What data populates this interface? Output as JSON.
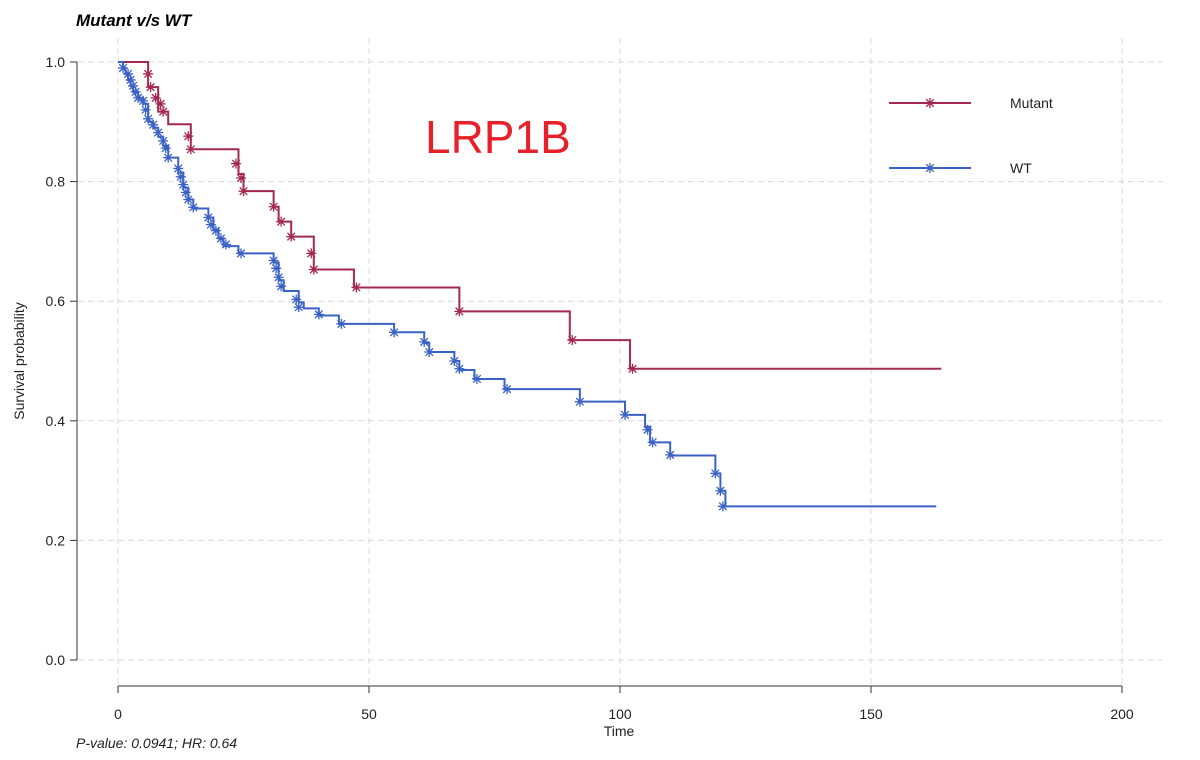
{
  "chart_data": {
    "type": "line",
    "title": "Mutant v/s WT",
    "xlabel": "Time",
    "ylabel": "Survival probability",
    "xlim": [
      0,
      200
    ],
    "ylim": [
      0,
      1
    ],
    "x_ticks": [
      0,
      50,
      100,
      150,
      200
    ],
    "y_ticks": [
      0.0,
      0.2,
      0.4,
      0.6,
      0.8,
      1.0
    ],
    "x_tick_labels": [
      "0",
      "50",
      "100",
      "150",
      "200"
    ],
    "y_tick_labels": [
      "0.0",
      "0.2",
      "0.4",
      "0.6",
      "0.8",
      "1.0"
    ],
    "grid": true,
    "legend_position": "top-right",
    "annotation": "LRP1B",
    "annotation_color": "#e8202a",
    "footnote": "P-value: 0.0941; HR: 0.64",
    "series": [
      {
        "name": "Mutant",
        "color": "#a3294f",
        "steps": [
          [
            0,
            1.0
          ],
          [
            6,
            0.958
          ],
          [
            8,
            0.917
          ],
          [
            10,
            0.896
          ],
          [
            14.5,
            0.854
          ],
          [
            24,
            0.813
          ],
          [
            25,
            0.784
          ],
          [
            31,
            0.758
          ],
          [
            32,
            0.733
          ],
          [
            34.5,
            0.708
          ],
          [
            39,
            0.653
          ],
          [
            47,
            0.623
          ],
          [
            68,
            0.583
          ],
          [
            90,
            0.535
          ],
          [
            102,
            0.487
          ],
          [
            164,
            0.487
          ]
        ],
        "censored": [
          [
            6,
            0.98
          ],
          [
            6.5,
            0.958
          ],
          [
            7.5,
            0.94
          ],
          [
            8.5,
            0.93
          ],
          [
            9,
            0.917
          ],
          [
            14,
            0.876
          ],
          [
            14.5,
            0.854
          ],
          [
            23.5,
            0.83
          ],
          [
            24.5,
            0.806
          ],
          [
            25,
            0.784
          ],
          [
            31,
            0.758
          ],
          [
            32.5,
            0.733
          ],
          [
            34.5,
            0.708
          ],
          [
            38.5,
            0.68
          ],
          [
            39,
            0.653
          ],
          [
            47.5,
            0.623
          ],
          [
            68,
            0.583
          ],
          [
            90.5,
            0.535
          ],
          [
            102.5,
            0.487
          ]
        ]
      },
      {
        "name": "WT",
        "color": "#3a62c4",
        "steps": [
          [
            0,
            1.0
          ],
          [
            1,
            0.99
          ],
          [
            1.5,
            0.98
          ],
          [
            2,
            0.97
          ],
          [
            2.5,
            0.96
          ],
          [
            3,
            0.95
          ],
          [
            4,
            0.94
          ],
          [
            5,
            0.93
          ],
          [
            6,
            0.9
          ],
          [
            7,
            0.89
          ],
          [
            8,
            0.875
          ],
          [
            9,
            0.86
          ],
          [
            10,
            0.84
          ],
          [
            12,
            0.815
          ],
          [
            13,
            0.79
          ],
          [
            14,
            0.77
          ],
          [
            15,
            0.755
          ],
          [
            18,
            0.74
          ],
          [
            19,
            0.72
          ],
          [
            20,
            0.705
          ],
          [
            21,
            0.692
          ],
          [
            24,
            0.68
          ],
          [
            31,
            0.665
          ],
          [
            32,
            0.635
          ],
          [
            33,
            0.617
          ],
          [
            36,
            0.598
          ],
          [
            37,
            0.588
          ],
          [
            40,
            0.576
          ],
          [
            44,
            0.562
          ],
          [
            55,
            0.548
          ],
          [
            61,
            0.53
          ],
          [
            62,
            0.515
          ],
          [
            67,
            0.5
          ],
          [
            68,
            0.485
          ],
          [
            71,
            0.47
          ],
          [
            77,
            0.453
          ],
          [
            92,
            0.432
          ],
          [
            101,
            0.41
          ],
          [
            105,
            0.39
          ],
          [
            106,
            0.364
          ],
          [
            110,
            0.342
          ],
          [
            119,
            0.312
          ],
          [
            120,
            0.283
          ],
          [
            121,
            0.257
          ],
          [
            163,
            0.257
          ]
        ],
        "censored": [
          [
            1,
            0.99
          ],
          [
            2,
            0.98
          ],
          [
            2.5,
            0.97
          ],
          [
            3,
            0.96
          ],
          [
            3.5,
            0.95
          ],
          [
            4,
            0.94
          ],
          [
            5,
            0.935
          ],
          [
            5.5,
            0.92
          ],
          [
            6,
            0.905
          ],
          [
            7,
            0.895
          ],
          [
            8,
            0.882
          ],
          [
            9,
            0.868
          ],
          [
            9.5,
            0.856
          ],
          [
            10,
            0.84
          ],
          [
            12,
            0.822
          ],
          [
            12.5,
            0.808
          ],
          [
            13,
            0.795
          ],
          [
            13.5,
            0.782
          ],
          [
            14,
            0.77
          ],
          [
            15,
            0.757
          ],
          [
            18,
            0.74
          ],
          [
            18.5,
            0.728
          ],
          [
            19.5,
            0.718
          ],
          [
            20.5,
            0.705
          ],
          [
            21.5,
            0.695
          ],
          [
            24.5,
            0.68
          ],
          [
            31,
            0.668
          ],
          [
            31.5,
            0.655
          ],
          [
            32,
            0.64
          ],
          [
            32.5,
            0.625
          ],
          [
            35.5,
            0.603
          ],
          [
            36,
            0.59
          ],
          [
            40,
            0.578
          ],
          [
            44.5,
            0.562
          ],
          [
            55,
            0.548
          ],
          [
            61,
            0.532
          ],
          [
            62,
            0.515
          ],
          [
            67,
            0.5
          ],
          [
            68,
            0.487
          ],
          [
            71.5,
            0.47
          ],
          [
            77.5,
            0.453
          ],
          [
            92,
            0.432
          ],
          [
            101,
            0.41
          ],
          [
            105.5,
            0.385
          ],
          [
            106.5,
            0.364
          ],
          [
            110,
            0.343
          ],
          [
            119,
            0.312
          ],
          [
            120,
            0.283
          ],
          [
            120.5,
            0.257
          ]
        ]
      }
    ]
  }
}
